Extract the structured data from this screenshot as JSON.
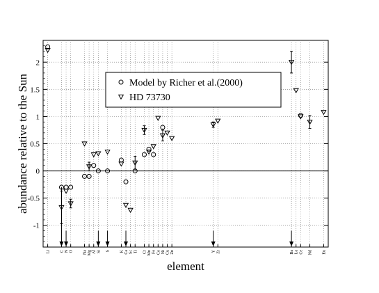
{
  "chart_data": {
    "type": "scatter",
    "xlabel": "element",
    "ylabel": "abundance relative to the Sun",
    "ylim": [
      -1.4,
      2.4
    ],
    "yticks": [
      -1,
      -0.5,
      0,
      0.5,
      1,
      1.5,
      2
    ],
    "ytick_labels": [
      "-1",
      "-0.5",
      "0",
      "0.5",
      "1",
      "1.5",
      "2"
    ],
    "xlim": [
      2,
      64
    ],
    "grid": true,
    "legend_position": "top-center",
    "reference_line_y": 0,
    "elements": [
      {
        "label": "Li",
        "z": 3
      },
      {
        "label": "C",
        "z": 6
      },
      {
        "label": "N",
        "z": 7
      },
      {
        "label": "O",
        "z": 8
      },
      {
        "label": "Na",
        "z": 11
      },
      {
        "label": "Mg",
        "z": 12
      },
      {
        "label": "Al",
        "z": 13
      },
      {
        "label": "Si",
        "z": 14
      },
      {
        "label": "S",
        "z": 16
      },
      {
        "label": "K",
        "z": 19
      },
      {
        "label": "Ca",
        "z": 20
      },
      {
        "label": "Sc",
        "z": 21
      },
      {
        "label": "Ti",
        "z": 22
      },
      {
        "label": "Cr",
        "z": 24
      },
      {
        "label": "Mn",
        "z": 25
      },
      {
        "label": "Fe",
        "z": 26
      },
      {
        "label": "Co",
        "z": 27
      },
      {
        "label": "Ni",
        "z": 28
      },
      {
        "label": "Cu",
        "z": 29
      },
      {
        "label": "Zn",
        "z": 30
      },
      {
        "label": "Y",
        "z": 39
      },
      {
        "label": "Zr",
        "z": 40
      },
      {
        "label": "Ba",
        "z": 56
      },
      {
        "label": "La",
        "z": 57
      },
      {
        "label": "Ce",
        "z": 58
      },
      {
        "label": "Nd",
        "z": 60
      },
      {
        "label": "Eu",
        "z": 63
      }
    ],
    "series": [
      {
        "name": "Model by Richer et al.(2000)",
        "marker": "circle",
        "points": [
          {
            "z": 3,
            "y": 2.28
          },
          {
            "z": 6,
            "y": -0.3
          },
          {
            "z": 7,
            "y": -0.3
          },
          {
            "z": 8,
            "y": -0.3
          },
          {
            "z": 11,
            "y": -0.1
          },
          {
            "z": 12,
            "y": -0.1
          },
          {
            "z": 13,
            "y": 0.1
          },
          {
            "z": 14,
            "y": 0.0
          },
          {
            "z": 16,
            "y": 0.0
          },
          {
            "z": 19,
            "y": 0.2
          },
          {
            "z": 20,
            "y": -0.2
          },
          {
            "z": 22,
            "y": 0.0
          },
          {
            "z": 24,
            "y": 0.3
          },
          {
            "z": 25,
            "y": 0.4
          },
          {
            "z": 26,
            "y": 0.3
          },
          {
            "z": 28,
            "y": 0.8
          },
          {
            "z": 58,
            "y": 1.02
          }
        ]
      },
      {
        "name": "HD 73730",
        "marker": "triangle-down",
        "points": [
          {
            "z": 3,
            "y": 2.22
          },
          {
            "z": 6,
            "y": -0.67,
            "err": 0.3
          },
          {
            "z": 7,
            "y": -0.37
          },
          {
            "z": 8,
            "y": -0.6,
            "err": 0.08
          },
          {
            "z": 11,
            "y": 0.5
          },
          {
            "z": 12,
            "y": 0.08,
            "err": 0.08
          },
          {
            "z": 13,
            "y": 0.3
          },
          {
            "z": 14,
            "y": 0.32
          },
          {
            "z": 16,
            "y": 0.35
          },
          {
            "z": 19,
            "y": 0.13
          },
          {
            "z": 20,
            "y": -0.63
          },
          {
            "z": 21,
            "y": -0.72
          },
          {
            "z": 22,
            "y": 0.15,
            "err": 0.12
          },
          {
            "z": 24,
            "y": 0.75,
            "err": 0.08
          },
          {
            "z": 25,
            "y": 0.35
          },
          {
            "z": 26,
            "y": 0.45
          },
          {
            "z": 27,
            "y": 0.97
          },
          {
            "z": 28,
            "y": 0.65,
            "err": 0.1
          },
          {
            "z": 29,
            "y": 0.7
          },
          {
            "z": 30,
            "y": 0.6
          },
          {
            "z": 39,
            "y": 0.85,
            "err": 0.05
          },
          {
            "z": 40,
            "y": 0.92
          },
          {
            "z": 56,
            "y": 2.0,
            "err": 0.2
          },
          {
            "z": 57,
            "y": 1.48
          },
          {
            "z": 58,
            "y": 1.0
          },
          {
            "z": 60,
            "y": 0.9,
            "err": 0.12
          },
          {
            "z": 63,
            "y": 1.08
          }
        ]
      }
    ],
    "down_arrows": [
      {
        "z": 6,
        "y_top": -0.3
      },
      {
        "z": 7,
        "y_top": -1.1
      },
      {
        "z": 14,
        "y_top": -1.1
      },
      {
        "z": 16,
        "y_top": -1.1
      },
      {
        "z": 20,
        "y_top": -1.1
      },
      {
        "z": 39,
        "y_top": -1.1
      },
      {
        "z": 56,
        "y_top": -1.1
      }
    ]
  }
}
